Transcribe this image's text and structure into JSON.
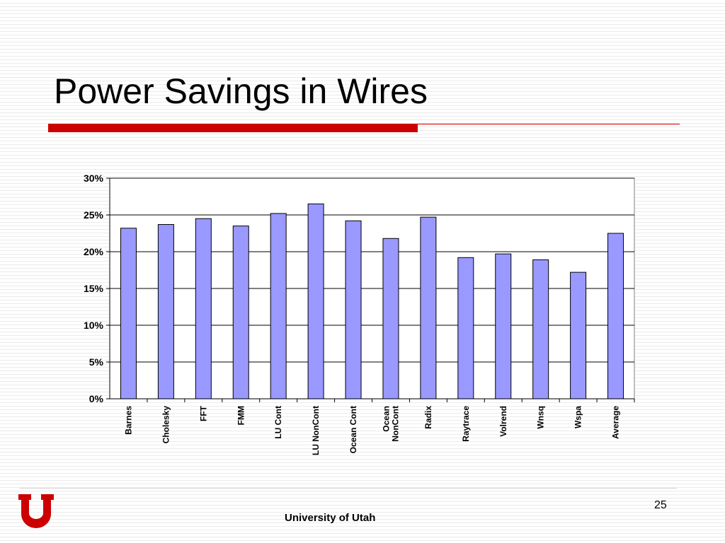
{
  "slide": {
    "title": "Power Savings in Wires",
    "footer": "University of Utah",
    "page_number": "25",
    "colors": {
      "accent_red": "#cc0000",
      "bar_fill": "#9999ff"
    }
  },
  "chart_data": {
    "type": "bar",
    "categories": [
      "Barnes",
      "Cholesky",
      "FFT",
      "FMM",
      "LU Cont",
      "LU NonCont",
      "Ocean Cont",
      "Ocean NonCont",
      "Radix",
      "Raytrace",
      "Volrend",
      "Wnsq",
      "Wspa",
      "Average"
    ],
    "category_lines": [
      [
        "Barnes"
      ],
      [
        "Cholesky"
      ],
      [
        "FFT"
      ],
      [
        "FMM"
      ],
      [
        "LU Cont"
      ],
      [
        "LU NonCont"
      ],
      [
        "Ocean Cont"
      ],
      [
        "Ocean",
        "NonCont"
      ],
      [
        "Radix"
      ],
      [
        "Raytrace"
      ],
      [
        "Volrend"
      ],
      [
        "Wnsq"
      ],
      [
        "Wspa"
      ],
      [
        "Average"
      ]
    ],
    "values": [
      23.2,
      23.7,
      24.5,
      23.5,
      25.2,
      26.5,
      24.2,
      21.8,
      24.7,
      19.2,
      19.7,
      18.9,
      17.2,
      22.5
    ],
    "ylim": [
      0,
      30
    ],
    "yticks": [
      "0%",
      "5%",
      "10%",
      "15%",
      "20%",
      "25%",
      "30%"
    ],
    "grid": true,
    "legend": "none",
    "title": "",
    "xlabel": "",
    "ylabel": ""
  }
}
